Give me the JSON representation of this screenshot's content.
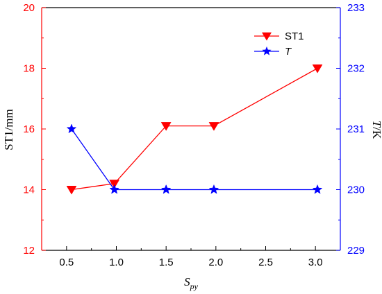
{
  "colors": {
    "st1": "#ff0000",
    "t": "#0000ff",
    "axis": "#000000"
  },
  "chart_data": {
    "type": "line",
    "xlabel": "S",
    "xlabel_sub": "py",
    "ylabel_left": "ST1/mm",
    "ylabel_right_italic": "T",
    "ylabel_right_rest": "/K",
    "xlim": [
      0.25,
      3.25
    ],
    "ylim_left": [
      12,
      20
    ],
    "ylim_right": [
      229,
      233
    ],
    "x_ticks": [
      "0.5",
      "1.0",
      "1.5",
      "2.0",
      "2.5",
      "3.0"
    ],
    "y_ticks_left": [
      "12",
      "14",
      "16",
      "18",
      "20"
    ],
    "y_ticks_right": [
      "229",
      "230",
      "231",
      "232",
      "233"
    ],
    "legend_position": "top-right",
    "series": [
      {
        "name": "ST1",
        "axis": "left",
        "marker": "triangle-down",
        "x": [
          0.55,
          0.98,
          1.5,
          1.98,
          3.02
        ],
        "y": [
          14.0,
          14.2,
          16.1,
          16.1,
          18.0
        ]
      },
      {
        "name": "T",
        "axis": "right",
        "marker": "star",
        "x": [
          0.55,
          0.98,
          1.5,
          1.98,
          3.02
        ],
        "y": [
          231,
          230,
          230,
          230,
          230
        ]
      }
    ]
  }
}
